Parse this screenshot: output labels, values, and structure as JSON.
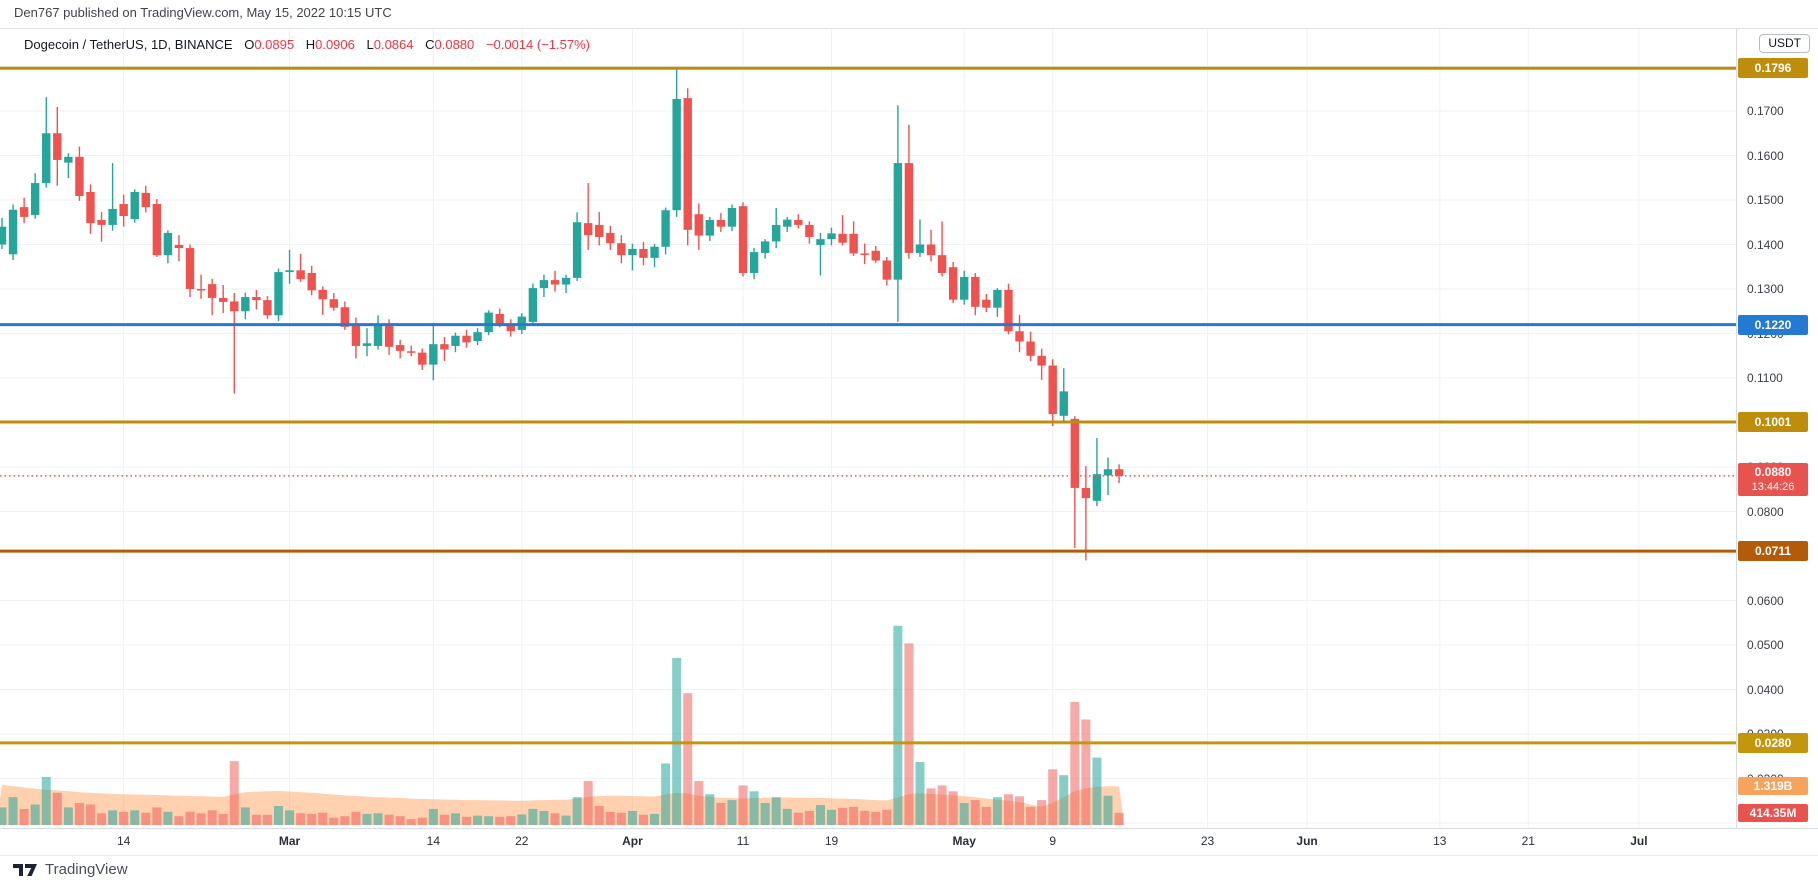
{
  "page": {
    "publish_line": "Den767 published on TradingView.com, May 15, 2022 10:15 UTC"
  },
  "header": {
    "symbol": "Dogecoin / TetherUS, 1D, BINANCE",
    "ohlc": [
      {
        "label": "O",
        "value": "0.0895"
      },
      {
        "label": "H",
        "value": "0.0906"
      },
      {
        "label": "L",
        "value": "0.0864"
      },
      {
        "label": "C",
        "value": "0.0880"
      }
    ],
    "change": "−0.0014 (−1.57%)",
    "value_color": "#f23645"
  },
  "price_axis": {
    "currency": "USDT",
    "ticks": [
      {
        "label": "0.1700",
        "value": 0.17
      },
      {
        "label": "0.1600",
        "value": 0.16
      },
      {
        "label": "0.1500",
        "value": 0.15
      },
      {
        "label": "0.1400",
        "value": 0.14
      },
      {
        "label": "0.1300",
        "value": 0.13
      },
      {
        "label": "0.1200",
        "value": 0.12
      },
      {
        "label": "0.1100",
        "value": 0.11
      },
      {
        "label": "0.0900",
        "value": 0.09
      },
      {
        "label": "0.0800",
        "value": 0.08
      },
      {
        "label": "0.0600",
        "value": 0.06
      },
      {
        "label": "0.0500",
        "value": 0.05
      },
      {
        "label": "0.0400",
        "value": 0.04
      },
      {
        "label": "0.0300",
        "value": 0.03
      },
      {
        "label": "0.0200",
        "value": 0.02
      }
    ]
  },
  "time_axis": {
    "ticks": [
      {
        "label": "14",
        "day": 11,
        "month": false
      },
      {
        "label": "Mar",
        "day": 26,
        "month": true
      },
      {
        "label": "14",
        "day": 39,
        "month": false
      },
      {
        "label": "22",
        "day": 47,
        "month": false
      },
      {
        "label": "Apr",
        "day": 57,
        "month": true
      },
      {
        "label": "11",
        "day": 67,
        "month": false
      },
      {
        "label": "19",
        "day": 75,
        "month": false
      },
      {
        "label": "May",
        "day": 87,
        "month": true
      },
      {
        "label": "9",
        "day": 95,
        "month": false
      },
      {
        "label": "23",
        "day": 109,
        "month": false
      },
      {
        "label": "Jun",
        "day": 118,
        "month": true
      },
      {
        "label": "13",
        "day": 130,
        "month": false
      },
      {
        "label": "21",
        "day": 138,
        "month": false
      },
      {
        "label": "Jul",
        "day": 148,
        "month": true
      }
    ]
  },
  "levels": [
    {
      "label": "0.1796",
      "value": 0.1796,
      "color": "#be8d0b",
      "line": "solid"
    },
    {
      "label": "0.1220",
      "value": 0.122,
      "color": "#2479d2",
      "line": "solid"
    },
    {
      "label": "0.1001",
      "value": 0.1001,
      "color": "#be8d0b",
      "line": "solid"
    },
    {
      "label": "0.0880",
      "value": 0.088,
      "color": "#e8534f",
      "line": "dotted",
      "countdown": "13:44:26"
    },
    {
      "label": "0.0711",
      "value": 0.0711,
      "color": "#b35b09",
      "line": "solid"
    },
    {
      "label": "0.0280",
      "value": 0.028,
      "color": "#c3970b",
      "line": "solid"
    }
  ],
  "volume_axis_labels": {
    "ma": {
      "label": "1.319B",
      "color": "#f7a35c"
    },
    "current": {
      "label": "414.35M",
      "color": "#e8534f"
    }
  },
  "footer": {
    "brand": "TradingView"
  },
  "chart_data": {
    "type": "candlestick",
    "title": "Dogecoin / TetherUS, 1D, BINANCE",
    "interval": "1D",
    "legend_note": "price candles with volume bars and volume MA area; horizontal support/resistance levels at 0.1796, 0.1220, 0.1001, 0.0880 (current, countdown 13:44:26), 0.0711, 0.0280",
    "ylim_price": [
      0.009,
      0.189
    ],
    "grid": true,
    "colors": {
      "up": "#26a69a",
      "down": "#ef5350",
      "vol_up": "rgba(38,166,154,0.55)",
      "vol_down": "rgba(239,83,80,0.5)",
      "ma_area": "rgba(255,163,99,0.5)",
      "grid": "#eef1f5"
    },
    "candles": [
      {
        "d": "Feb 3",
        "o": 0.14,
        "h": 0.146,
        "l": 0.139,
        "c": 0.144,
        "v": 0.6
      },
      {
        "d": "Feb 4",
        "o": 0.1378,
        "h": 0.149,
        "l": 0.1365,
        "c": 0.1478,
        "v": 0.95
      },
      {
        "d": "Feb 5",
        "o": 0.1484,
        "h": 0.1505,
        "l": 0.1448,
        "c": 0.1462,
        "v": 0.55
      },
      {
        "d": "Feb 6",
        "o": 0.1466,
        "h": 0.156,
        "l": 0.1458,
        "c": 0.1538,
        "v": 0.7
      },
      {
        "d": "Feb 7",
        "o": 0.1538,
        "h": 0.1731,
        "l": 0.1528,
        "c": 0.165,
        "v": 1.64
      },
      {
        "d": "Feb 8",
        "o": 0.165,
        "h": 0.1709,
        "l": 0.1532,
        "c": 0.159,
        "v": 1.1
      },
      {
        "d": "Feb 9",
        "o": 0.1584,
        "h": 0.1605,
        "l": 0.1549,
        "c": 0.1597,
        "v": 0.6
      },
      {
        "d": "Feb 10",
        "o": 0.1597,
        "h": 0.162,
        "l": 0.1498,
        "c": 0.1509,
        "v": 0.75
      },
      {
        "d": "Feb 11",
        "o": 0.1518,
        "h": 0.1535,
        "l": 0.1424,
        "c": 0.1448,
        "v": 0.7
      },
      {
        "d": "Feb 12",
        "o": 0.1455,
        "h": 0.1473,
        "l": 0.1406,
        "c": 0.1444,
        "v": 0.4
      },
      {
        "d": "Feb 13",
        "o": 0.1444,
        "h": 0.1583,
        "l": 0.1431,
        "c": 0.148,
        "v": 0.5
      },
      {
        "d": "Feb 14",
        "o": 0.1491,
        "h": 0.1512,
        "l": 0.144,
        "c": 0.1464,
        "v": 0.45
      },
      {
        "d": "Feb 15",
        "o": 0.1457,
        "h": 0.1524,
        "l": 0.1449,
        "c": 0.1518,
        "v": 0.5
      },
      {
        "d": "Feb 16",
        "o": 0.1516,
        "h": 0.1532,
        "l": 0.1472,
        "c": 0.1484,
        "v": 0.42
      },
      {
        "d": "Feb 17",
        "o": 0.1491,
        "h": 0.1502,
        "l": 0.1372,
        "c": 0.1376,
        "v": 0.6
      },
      {
        "d": "Feb 18",
        "o": 0.1376,
        "h": 0.1432,
        "l": 0.1358,
        "c": 0.1426,
        "v": 0.45
      },
      {
        "d": "Feb 19",
        "o": 0.1399,
        "h": 0.1421,
        "l": 0.1362,
        "c": 0.1392,
        "v": 0.3
      },
      {
        "d": "Feb 20",
        "o": 0.1392,
        "h": 0.14,
        "l": 0.1282,
        "c": 0.13,
        "v": 0.45
      },
      {
        "d": "Feb 21",
        "o": 0.13,
        "h": 0.1332,
        "l": 0.1278,
        "c": 0.1298,
        "v": 0.4
      },
      {
        "d": "Feb 22",
        "o": 0.1311,
        "h": 0.1323,
        "l": 0.1241,
        "c": 0.128,
        "v": 0.5
      },
      {
        "d": "Feb 23",
        "o": 0.128,
        "h": 0.1309,
        "l": 0.1246,
        "c": 0.1271,
        "v": 0.38
      },
      {
        "d": "Feb 24",
        "o": 0.1272,
        "h": 0.1291,
        "l": 0.1065,
        "c": 0.125,
        "v": 2.18
      },
      {
        "d": "Feb 25",
        "o": 0.125,
        "h": 0.1292,
        "l": 0.1232,
        "c": 0.1282,
        "v": 0.6
      },
      {
        "d": "Feb 26",
        "o": 0.1282,
        "h": 0.1298,
        "l": 0.1254,
        "c": 0.1275,
        "v": 0.35
      },
      {
        "d": "Feb 27",
        "o": 0.1275,
        "h": 0.1284,
        "l": 0.1233,
        "c": 0.1241,
        "v": 0.35
      },
      {
        "d": "Feb 28",
        "o": 0.1241,
        "h": 0.1346,
        "l": 0.1228,
        "c": 0.1338,
        "v": 0.65
      },
      {
        "d": "Mar 1",
        "o": 0.1338,
        "h": 0.1388,
        "l": 0.1312,
        "c": 0.1342,
        "v": 0.5
      },
      {
        "d": "Mar 2",
        "o": 0.1342,
        "h": 0.1379,
        "l": 0.1316,
        "c": 0.1322,
        "v": 0.4
      },
      {
        "d": "Mar 3",
        "o": 0.1336,
        "h": 0.1352,
        "l": 0.1286,
        "c": 0.1297,
        "v": 0.38
      },
      {
        "d": "Mar 4",
        "o": 0.1298,
        "h": 0.1306,
        "l": 0.1242,
        "c": 0.1277,
        "v": 0.42
      },
      {
        "d": "Mar 5",
        "o": 0.1277,
        "h": 0.1291,
        "l": 0.1251,
        "c": 0.1258,
        "v": 0.25
      },
      {
        "d": "Mar 6",
        "o": 0.1259,
        "h": 0.1272,
        "l": 0.1208,
        "c": 0.1215,
        "v": 0.3
      },
      {
        "d": "Mar 7",
        "o": 0.122,
        "h": 0.1236,
        "l": 0.1144,
        "c": 0.1172,
        "v": 0.45
      },
      {
        "d": "Mar 8",
        "o": 0.1172,
        "h": 0.1212,
        "l": 0.1149,
        "c": 0.1178,
        "v": 0.38
      },
      {
        "d": "Mar 9",
        "o": 0.1172,
        "h": 0.1241,
        "l": 0.1164,
        "c": 0.122,
        "v": 0.4
      },
      {
        "d": "Mar 10",
        "o": 0.1221,
        "h": 0.1232,
        "l": 0.1152,
        "c": 0.117,
        "v": 0.35
      },
      {
        "d": "Mar 11",
        "o": 0.1174,
        "h": 0.1186,
        "l": 0.1144,
        "c": 0.1161,
        "v": 0.3
      },
      {
        "d": "Mar 12",
        "o": 0.116,
        "h": 0.1173,
        "l": 0.1149,
        "c": 0.1157,
        "v": 0.2
      },
      {
        "d": "Mar 13",
        "o": 0.1157,
        "h": 0.1166,
        "l": 0.1118,
        "c": 0.113,
        "v": 0.25
      },
      {
        "d": "Mar 14",
        "o": 0.113,
        "h": 0.1224,
        "l": 0.1095,
        "c": 0.1176,
        "v": 0.55
      },
      {
        "d": "Mar 15",
        "o": 0.1176,
        "h": 0.1192,
        "l": 0.1138,
        "c": 0.1164,
        "v": 0.35
      },
      {
        "d": "Mar 16",
        "o": 0.1172,
        "h": 0.1202,
        "l": 0.1158,
        "c": 0.1195,
        "v": 0.4
      },
      {
        "d": "Mar 17",
        "o": 0.1195,
        "h": 0.1208,
        "l": 0.1168,
        "c": 0.118,
        "v": 0.28
      },
      {
        "d": "Mar 18",
        "o": 0.1183,
        "h": 0.1212,
        "l": 0.1174,
        "c": 0.1203,
        "v": 0.32
      },
      {
        "d": "Mar 19",
        "o": 0.1203,
        "h": 0.1252,
        "l": 0.1196,
        "c": 0.1247,
        "v": 0.3
      },
      {
        "d": "Mar 20",
        "o": 0.1244,
        "h": 0.1256,
        "l": 0.1214,
        "c": 0.122,
        "v": 0.28
      },
      {
        "d": "Mar 21",
        "o": 0.122,
        "h": 0.1232,
        "l": 0.1193,
        "c": 0.1205,
        "v": 0.3
      },
      {
        "d": "Mar 22",
        "o": 0.1208,
        "h": 0.1246,
        "l": 0.1199,
        "c": 0.1238,
        "v": 0.36
      },
      {
        "d": "Mar 23",
        "o": 0.1226,
        "h": 0.1312,
        "l": 0.1219,
        "c": 0.1302,
        "v": 0.55
      },
      {
        "d": "Mar 24",
        "o": 0.1302,
        "h": 0.1332,
        "l": 0.1282,
        "c": 0.132,
        "v": 0.48
      },
      {
        "d": "Mar 25",
        "o": 0.132,
        "h": 0.1341,
        "l": 0.1294,
        "c": 0.131,
        "v": 0.4
      },
      {
        "d": "Mar 26",
        "o": 0.131,
        "h": 0.1332,
        "l": 0.1291,
        "c": 0.1325,
        "v": 0.32
      },
      {
        "d": "Mar 27",
        "o": 0.1325,
        "h": 0.1472,
        "l": 0.1318,
        "c": 0.145,
        "v": 0.95
      },
      {
        "d": "Mar 28",
        "o": 0.1448,
        "h": 0.1538,
        "l": 0.1388,
        "c": 0.1421,
        "v": 1.5
      },
      {
        "d": "Mar 29",
        "o": 0.1444,
        "h": 0.1473,
        "l": 0.1398,
        "c": 0.1417,
        "v": 0.65
      },
      {
        "d": "Mar 30",
        "o": 0.1426,
        "h": 0.1442,
        "l": 0.1388,
        "c": 0.1403,
        "v": 0.45
      },
      {
        "d": "Mar 31",
        "o": 0.1403,
        "h": 0.1421,
        "l": 0.1358,
        "c": 0.1376,
        "v": 0.42
      },
      {
        "d": "Apr 1",
        "o": 0.1376,
        "h": 0.1402,
        "l": 0.1342,
        "c": 0.139,
        "v": 0.48
      },
      {
        "d": "Apr 2",
        "o": 0.139,
        "h": 0.1406,
        "l": 0.1353,
        "c": 0.137,
        "v": 0.35
      },
      {
        "d": "Apr 3",
        "o": 0.137,
        "h": 0.1401,
        "l": 0.1349,
        "c": 0.1395,
        "v": 0.38
      },
      {
        "d": "Apr 4",
        "o": 0.1395,
        "h": 0.1483,
        "l": 0.1378,
        "c": 0.1477,
        "v": 2.1
      },
      {
        "d": "Apr 5",
        "o": 0.1477,
        "h": 0.1796,
        "l": 0.1462,
        "c": 0.1727,
        "v": 5.7
      },
      {
        "d": "Apr 6",
        "o": 0.1729,
        "h": 0.1751,
        "l": 0.1398,
        "c": 0.1433,
        "v": 4.5
      },
      {
        "d": "Apr 7",
        "o": 0.1468,
        "h": 0.1492,
        "l": 0.1388,
        "c": 0.142,
        "v": 1.5
      },
      {
        "d": "Apr 8",
        "o": 0.142,
        "h": 0.1462,
        "l": 0.1408,
        "c": 0.1455,
        "v": 1.05
      },
      {
        "d": "Apr 9",
        "o": 0.1455,
        "h": 0.1471,
        "l": 0.1428,
        "c": 0.144,
        "v": 0.75
      },
      {
        "d": "Apr 10",
        "o": 0.144,
        "h": 0.149,
        "l": 0.143,
        "c": 0.1482,
        "v": 0.85
      },
      {
        "d": "Apr 11",
        "o": 0.1486,
        "h": 0.1495,
        "l": 0.1328,
        "c": 0.1336,
        "v": 1.35
      },
      {
        "d": "Apr 12",
        "o": 0.1336,
        "h": 0.1392,
        "l": 0.1322,
        "c": 0.1383,
        "v": 1.15
      },
      {
        "d": "Apr 13",
        "o": 0.1381,
        "h": 0.1412,
        "l": 0.1368,
        "c": 0.1407,
        "v": 0.75
      },
      {
        "d": "Apr 14",
        "o": 0.1407,
        "h": 0.1482,
        "l": 0.1392,
        "c": 0.1444,
        "v": 0.95
      },
      {
        "d": "Apr 15",
        "o": 0.144,
        "h": 0.1462,
        "l": 0.1428,
        "c": 0.1456,
        "v": 0.55
      },
      {
        "d": "Apr 16",
        "o": 0.1455,
        "h": 0.1468,
        "l": 0.1436,
        "c": 0.1444,
        "v": 0.42
      },
      {
        "d": "Apr 17",
        "o": 0.1444,
        "h": 0.1452,
        "l": 0.1402,
        "c": 0.1417,
        "v": 0.48
      },
      {
        "d": "Apr 18",
        "o": 0.1399,
        "h": 0.1426,
        "l": 0.133,
        "c": 0.1412,
        "v": 0.68
      },
      {
        "d": "Apr 19",
        "o": 0.1412,
        "h": 0.1438,
        "l": 0.1398,
        "c": 0.1425,
        "v": 0.52
      },
      {
        "d": "Apr 20",
        "o": 0.1424,
        "h": 0.1466,
        "l": 0.1398,
        "c": 0.1404,
        "v": 0.58
      },
      {
        "d": "Apr 21",
        "o": 0.1424,
        "h": 0.1452,
        "l": 0.1374,
        "c": 0.138,
        "v": 0.62
      },
      {
        "d": "Apr 22",
        "o": 0.138,
        "h": 0.1402,
        "l": 0.1356,
        "c": 0.1378,
        "v": 0.48
      },
      {
        "d": "Apr 23",
        "o": 0.1386,
        "h": 0.1397,
        "l": 0.1359,
        "c": 0.1364,
        "v": 0.45
      },
      {
        "d": "Apr 24",
        "o": 0.1364,
        "h": 0.1372,
        "l": 0.1308,
        "c": 0.1321,
        "v": 0.52
      },
      {
        "d": "Apr 25",
        "o": 0.1321,
        "h": 0.1713,
        "l": 0.1226,
        "c": 0.1583,
        "v": 6.8
      },
      {
        "d": "Apr 26",
        "o": 0.1583,
        "h": 0.1669,
        "l": 0.1368,
        "c": 0.1381,
        "v": 6.2
      },
      {
        "d": "Apr 27",
        "o": 0.1381,
        "h": 0.1456,
        "l": 0.1372,
        "c": 0.14,
        "v": 2.15
      },
      {
        "d": "Apr 28",
        "o": 0.14,
        "h": 0.1433,
        "l": 0.1362,
        "c": 0.1376,
        "v": 1.25
      },
      {
        "d": "Apr 29",
        "o": 0.1376,
        "h": 0.1452,
        "l": 0.1328,
        "c": 0.1336,
        "v": 1.35
      },
      {
        "d": "Apr 30",
        "o": 0.1349,
        "h": 0.1361,
        "l": 0.1268,
        "c": 0.1276,
        "v": 1.15
      },
      {
        "d": "May 1",
        "o": 0.1276,
        "h": 0.1341,
        "l": 0.1265,
        "c": 0.1327,
        "v": 0.75
      },
      {
        "d": "May 2",
        "o": 0.1327,
        "h": 0.1336,
        "l": 0.1241,
        "c": 0.126,
        "v": 0.85
      },
      {
        "d": "May 3",
        "o": 0.1276,
        "h": 0.1289,
        "l": 0.1248,
        "c": 0.1258,
        "v": 0.62
      },
      {
        "d": "May 4",
        "o": 0.1258,
        "h": 0.1302,
        "l": 0.1237,
        "c": 0.1298,
        "v": 0.95
      },
      {
        "d": "May 5",
        "o": 0.1298,
        "h": 0.1312,
        "l": 0.1198,
        "c": 0.1205,
        "v": 1.05
      },
      {
        "d": "May 6",
        "o": 0.1205,
        "h": 0.1242,
        "l": 0.1158,
        "c": 0.1182,
        "v": 0.98
      },
      {
        "d": "May 7",
        "o": 0.1182,
        "h": 0.1204,
        "l": 0.1138,
        "c": 0.115,
        "v": 0.62
      },
      {
        "d": "May 8",
        "o": 0.115,
        "h": 0.1166,
        "l": 0.1096,
        "c": 0.1128,
        "v": 0.85
      },
      {
        "d": "May 9",
        "o": 0.1128,
        "h": 0.1142,
        "l": 0.0992,
        "c": 0.1019,
        "v": 1.9
      },
      {
        "d": "May 10",
        "o": 0.1015,
        "h": 0.1122,
        "l": 0.0998,
        "c": 0.107,
        "v": 1.7
      },
      {
        "d": "May 11",
        "o": 0.1008,
        "h": 0.1014,
        "l": 0.0718,
        "c": 0.0853,
        "v": 4.2
      },
      {
        "d": "May 12",
        "o": 0.0853,
        "h": 0.0902,
        "l": 0.069,
        "c": 0.083,
        "v": 3.6
      },
      {
        "d": "May 13",
        "o": 0.0824,
        "h": 0.0965,
        "l": 0.0812,
        "c": 0.0884,
        "v": 2.3
      },
      {
        "d": "May 14",
        "o": 0.0881,
        "h": 0.0921,
        "l": 0.0837,
        "c": 0.0895,
        "v": 1.0
      },
      {
        "d": "May 15",
        "o": 0.0895,
        "h": 0.0906,
        "l": 0.0864,
        "c": 0.088,
        "v": 0.41435
      }
    ],
    "volume_ma_b": [
      1.37,
      1.33,
      1.28,
      1.24,
      1.2,
      1.18,
      1.15,
      1.12,
      1.1,
      1.08,
      1.06,
      1.05,
      1.04,
      1.03,
      1.02,
      1.01,
      1.0,
      0.99,
      0.98,
      0.97,
      0.96,
      1.05,
      1.12,
      1.14,
      1.15,
      1.16,
      1.14,
      1.12,
      1.1,
      1.07,
      1.04,
      1.01,
      0.99,
      0.97,
      0.95,
      0.94,
      0.92,
      0.9,
      0.89,
      0.88,
      0.87,
      0.86,
      0.85,
      0.85,
      0.84,
      0.84,
      0.83,
      0.83,
      0.84,
      0.85,
      0.86,
      0.86,
      0.9,
      0.96,
      0.99,
      1.0,
      1.0,
      0.99,
      0.98,
      0.97,
      1.05,
      1.1,
      1.08,
      1.0,
      0.96,
      0.93,
      0.92,
      0.9,
      0.92,
      0.93,
      0.94,
      0.94,
      0.93,
      0.92,
      0.92,
      0.91,
      0.9,
      0.89,
      0.87,
      0.85,
      0.84,
      0.95,
      1.05,
      1.08,
      1.06,
      1.04,
      1.02,
      0.98,
      0.95,
      0.9,
      0.86,
      0.83,
      0.78,
      0.7,
      0.62,
      0.75,
      0.95,
      1.15,
      1.25,
      1.3,
      1.32,
      1.319
    ]
  }
}
